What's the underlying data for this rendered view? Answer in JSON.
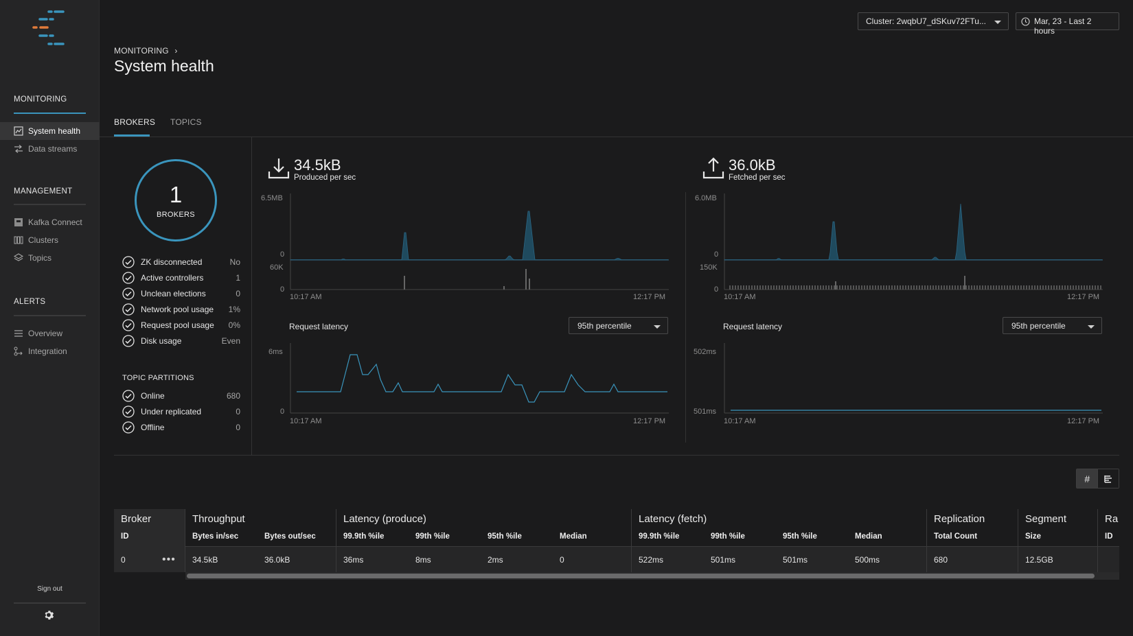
{
  "sidebar": {
    "sections": [
      {
        "title": "MONITORING",
        "items": [
          {
            "label": "System health",
            "icon": "chart-box-icon",
            "active": true
          },
          {
            "label": "Data streams",
            "icon": "arrows-icon",
            "active": false
          }
        ]
      },
      {
        "title": "MANAGEMENT",
        "items": [
          {
            "label": "Kafka Connect",
            "icon": "connect-icon"
          },
          {
            "label": "Clusters",
            "icon": "columns-icon"
          },
          {
            "label": "Topics",
            "icon": "layers-icon"
          }
        ]
      },
      {
        "title": "ALERTS",
        "items": [
          {
            "label": "Overview",
            "icon": "list-icon"
          },
          {
            "label": "Integration",
            "icon": "integration-icon"
          }
        ]
      }
    ],
    "sign_out": "Sign out"
  },
  "topbar": {
    "cluster": "Cluster: 2wqbU7_dSKuv72FTu...",
    "date_range": "Mar, 23 - Last 2 hours"
  },
  "header": {
    "breadcrumb": "MONITORING",
    "breadcrumb_sep": "›",
    "title": "System health"
  },
  "tabs": [
    {
      "label": "BROKERS",
      "active": true
    },
    {
      "label": "TOPICS",
      "active": false
    }
  ],
  "summary": {
    "broker_count": "1",
    "broker_label": "BROKERS",
    "stats": [
      {
        "label": "ZK disconnected",
        "value": "No"
      },
      {
        "label": "Active controllers",
        "value": "1"
      },
      {
        "label": "Unclean elections",
        "value": "0"
      },
      {
        "label": "Network pool usage",
        "value": "1%"
      },
      {
        "label": "Request pool usage",
        "value": "0%"
      },
      {
        "label": "Disk usage",
        "value": "Even"
      }
    ],
    "topic_partitions_title": "TOPIC PARTITIONS",
    "partitions": [
      {
        "label": "Online",
        "value": "680"
      },
      {
        "label": "Under replicated",
        "value": "0"
      },
      {
        "label": "Offline",
        "value": "0"
      }
    ]
  },
  "produced": {
    "value": "34.5kB",
    "label": "Produced per sec",
    "throughput_axis": {
      "max": "6.5MB",
      "min": "0"
    },
    "count_axis": {
      "max": "60K",
      "min": "0"
    },
    "time_start": "10:17 AM",
    "time_end": "12:17 PM",
    "latency_label": "Request latency",
    "percentile": "95th percentile",
    "latency_axis": {
      "max": "6ms",
      "min": "0"
    }
  },
  "fetched": {
    "value": "36.0kB",
    "label": "Fetched per sec",
    "throughput_axis": {
      "max": "6.0MB",
      "min": "0"
    },
    "count_axis": {
      "max": "150K",
      "min": "0"
    },
    "time_start": "10:17 AM",
    "time_end": "12:17 PM",
    "latency_label": "Request latency",
    "percentile": "95th percentile",
    "latency_axis": {
      "max": "502ms",
      "min": "501ms"
    }
  },
  "view_toggle": {
    "grid_icon": "#",
    "bars_icon": "bars-icon"
  },
  "table": {
    "groups": [
      {
        "title": "Broker",
        "cols": [
          "ID"
        ]
      },
      {
        "title": "Throughput",
        "cols": [
          "Bytes in/sec",
          "Bytes out/sec"
        ]
      },
      {
        "title": "Latency (produce)",
        "cols": [
          "99.9th %ile",
          "99th %ile",
          "95th %ile",
          "Median"
        ]
      },
      {
        "title": "Latency (fetch)",
        "cols": [
          "99.9th %ile",
          "99th %ile",
          "95th %ile",
          "Median"
        ]
      },
      {
        "title": "Replication",
        "cols": [
          "Total Count"
        ]
      },
      {
        "title": "Segment",
        "cols": [
          "Size"
        ]
      },
      {
        "title": "Ra",
        "cols": [
          "ID"
        ]
      }
    ],
    "row": {
      "id": "0",
      "bytes_in": "34.5kB",
      "bytes_out": "36.0kB",
      "prod_999": "36ms",
      "prod_99": "8ms",
      "prod_95": "2ms",
      "prod_median": "0",
      "fetch_999": "522ms",
      "fetch_99": "501ms",
      "fetch_95": "501ms",
      "fetch_median": "500ms",
      "replication_total": "680",
      "segment_size": "12.5GB"
    }
  },
  "colors": {
    "accent": "#3a95bd",
    "chart_fill": "#1f4a5e",
    "bg": "#1b1b1c"
  }
}
